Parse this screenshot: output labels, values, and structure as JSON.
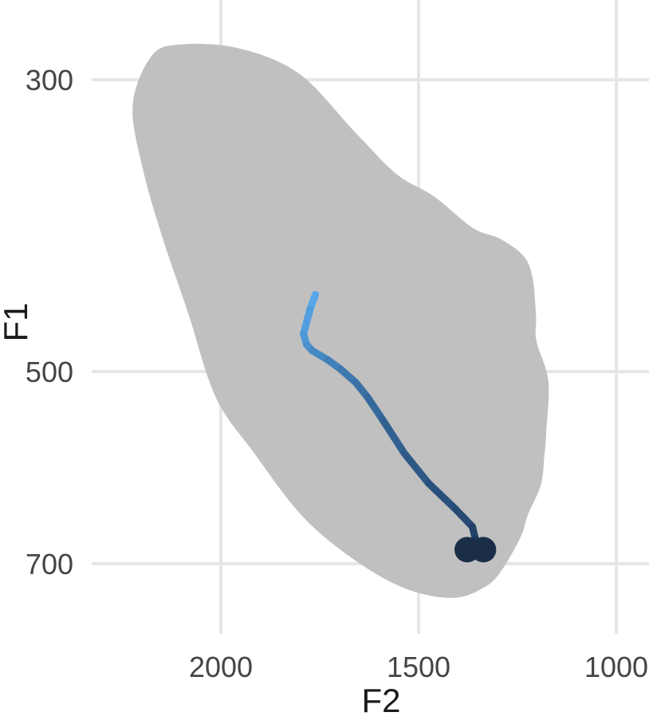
{
  "chart_data": {
    "type": "scatter",
    "title": "",
    "xlabel": "F2",
    "ylabel": "F1",
    "x_axis": {
      "reversed": true,
      "range": [
        2250,
        950
      ],
      "ticks": [
        2000,
        1500,
        1000
      ],
      "tick_labels": [
        "2000",
        "1500",
        "1000"
      ]
    },
    "y_axis": {
      "reversed": true,
      "log_scale": true,
      "range": [
        265,
        750
      ],
      "ticks": [
        300,
        500,
        700
      ],
      "tick_labels": [
        "300",
        "500",
        "700"
      ]
    },
    "grid": true,
    "legend": "none",
    "colors": {
      "region_fill": "#c0c0c0",
      "trajectory_start": "#55a7ea",
      "trajectory_end": "#1e3a5f",
      "endpoint": "#1b2e48",
      "grid": "#e6e6e6"
    },
    "vowel_space_region": [
      [
        2103,
        282
      ],
      [
        1953,
        284
      ],
      [
        1801,
        297
      ],
      [
        1660,
        329
      ],
      [
        1555,
        354
      ],
      [
        1461,
        368
      ],
      [
        1362,
        389
      ],
      [
        1296,
        396
      ],
      [
        1236,
        408
      ],
      [
        1212,
        424
      ],
      [
        1203,
        454
      ],
      [
        1202,
        474
      ],
      [
        1172,
        508
      ],
      [
        1177,
        555
      ],
      [
        1182,
        580
      ],
      [
        1191,
        610
      ],
      [
        1224,
        643
      ],
      [
        1241,
        667
      ],
      [
        1287,
        706
      ],
      [
        1329,
        728
      ],
      [
        1409,
        743
      ],
      [
        1523,
        733
      ],
      [
        1648,
        700
      ],
      [
        1790,
        646
      ],
      [
        1919,
        575
      ],
      [
        2013,
        523
      ],
      [
        2082,
        452
      ],
      [
        2147,
        396
      ],
      [
        2196,
        352
      ],
      [
        2223,
        314
      ],
      [
        2176,
        288
      ]
    ],
    "trajectory": {
      "x": [
        1761,
        1774,
        1791,
        1783,
        1769,
        1729,
        1697,
        1658,
        1629,
        1591,
        1536,
        1475,
        1407,
        1364,
        1356,
        1339
      ],
      "y": [
        437,
        448,
        468,
        477,
        482,
        490,
        498,
        510,
        523,
        544,
        577,
        608,
        636,
        656,
        671,
        683
      ]
    },
    "endpoints": [
      {
        "x": 1377,
        "y": 683
      },
      {
        "x": 1336,
        "y": 683
      }
    ]
  }
}
